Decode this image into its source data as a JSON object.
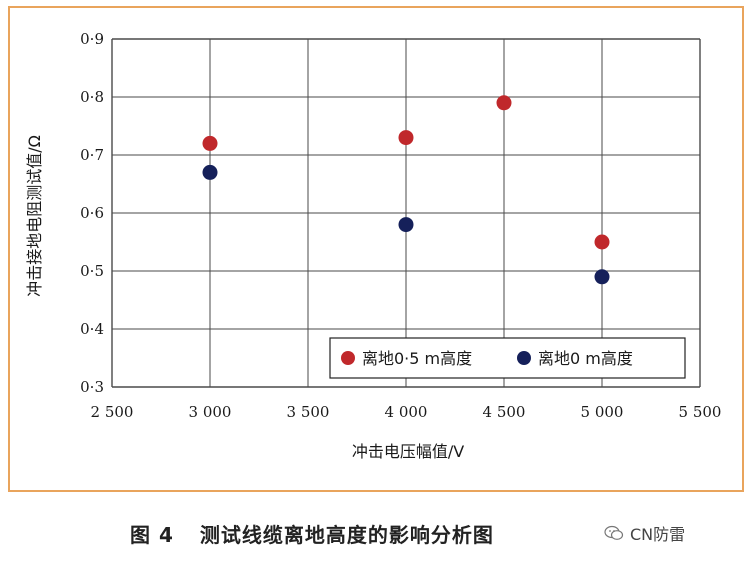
{
  "chart_data": {
    "type": "scatter",
    "xlabel": "冲击电压幅值/V",
    "ylabel": "冲击接地电阻测试值/Ω",
    "xlim": [
      2500,
      5500
    ],
    "ylim": [
      0.3,
      0.9
    ],
    "x_ticks": [
      2500,
      3000,
      3500,
      4000,
      4500,
      5000,
      5500
    ],
    "x_tick_labels": [
      "2 500",
      "3 000",
      "3 500",
      "4 000",
      "4 500",
      "5 000",
      "5 500"
    ],
    "y_ticks": [
      0.3,
      0.4,
      0.5,
      0.6,
      0.7,
      0.8,
      0.9
    ],
    "y_tick_labels": [
      "0·3",
      "0·4",
      "0·5",
      "0·6",
      "0·7",
      "0·8",
      "0·9"
    ],
    "grid": true,
    "legend_position": "bottom-right",
    "series": [
      {
        "name": "离地0·5 m高度",
        "color": "#c0282b",
        "points": [
          {
            "x": 3000,
            "y": 0.72
          },
          {
            "x": 4000,
            "y": 0.73
          },
          {
            "x": 4500,
            "y": 0.79
          },
          {
            "x": 5000,
            "y": 0.55
          }
        ]
      },
      {
        "name": "离地0 m高度",
        "color": "#15205a",
        "points": [
          {
            "x": 3000,
            "y": 0.67
          },
          {
            "x": 4000,
            "y": 0.58
          },
          {
            "x": 5000,
            "y": 0.49
          }
        ]
      }
    ]
  },
  "caption": {
    "figure_number": "图 4",
    "title": "测试线缆离地高度的影响分析图"
  },
  "watermark": {
    "text": "CN防雷",
    "icon": "wechat-icon"
  },
  "colors": {
    "frame_border": "#e9a45c",
    "grid": "#4a4a4a"
  }
}
